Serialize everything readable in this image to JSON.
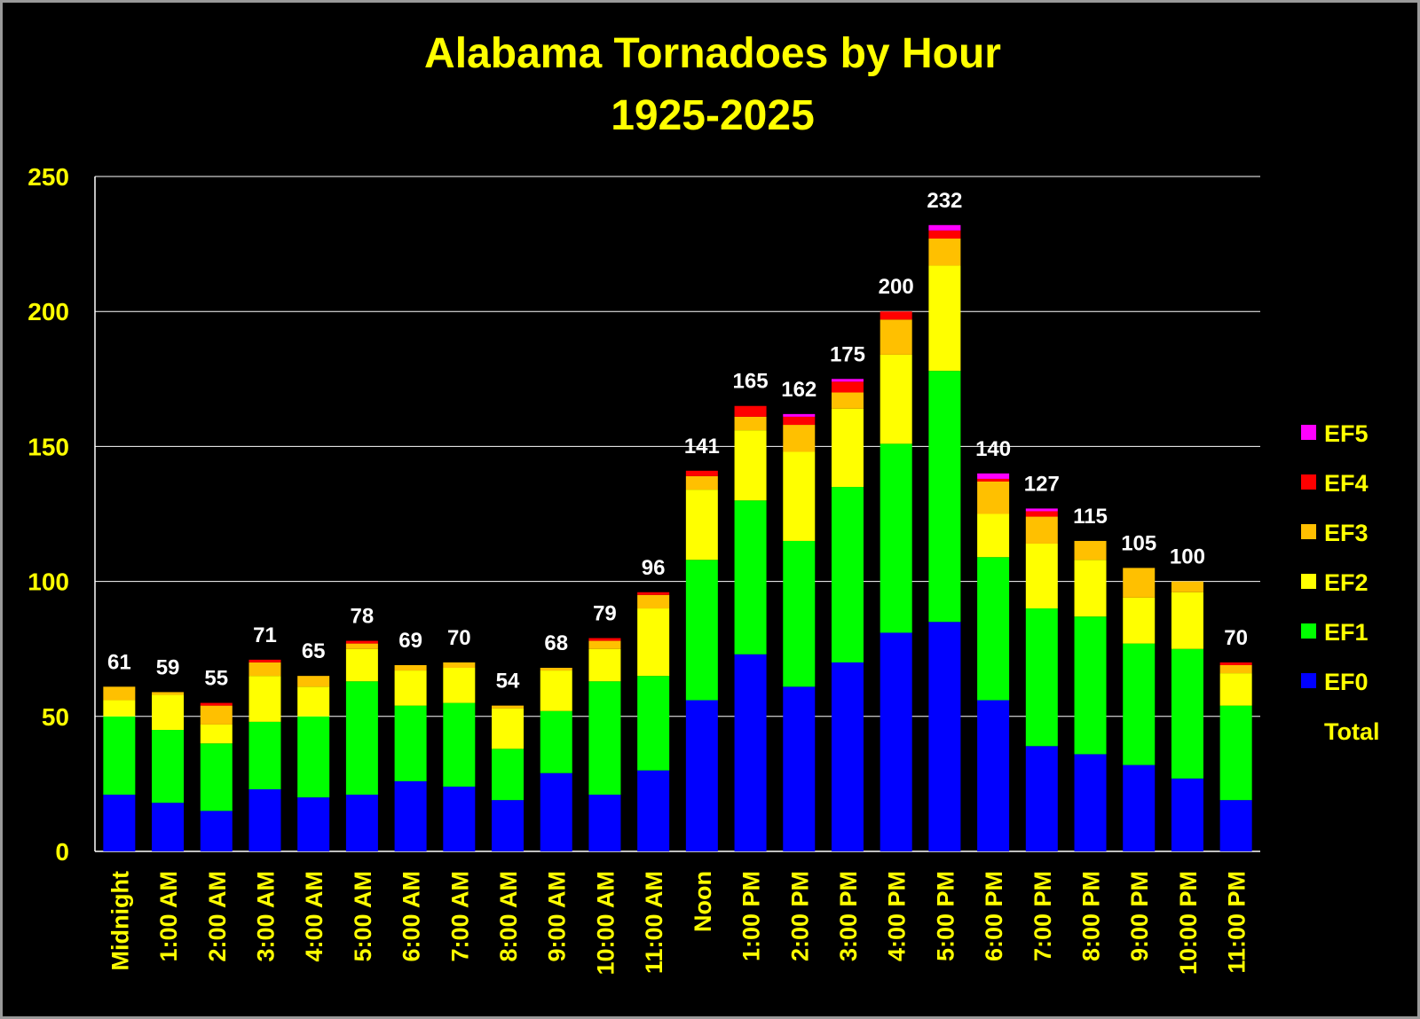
{
  "chart_data": {
    "type": "bar",
    "stacked": true,
    "title": "Alabama Tornadoes by Hour",
    "subtitle": "1925-2025",
    "categories": [
      "Midnight",
      "1:00 AM",
      "2:00 AM",
      "3:00 AM",
      "4:00 AM",
      "5:00 AM",
      "6:00 AM",
      "7:00 AM",
      "8:00 AM",
      "9:00 AM",
      "10:00 AM",
      "11:00 AM",
      "Noon",
      "1:00 PM",
      "2:00 PM",
      "3:00 PM",
      "4:00 PM",
      "5:00 PM",
      "6:00 PM",
      "7:00 PM",
      "8:00 PM",
      "9:00 PM",
      "10:00 PM",
      "11:00 PM"
    ],
    "series": [
      {
        "name": "EF0",
        "color": "#0000ff",
        "values": [
          21,
          18,
          15,
          23,
          20,
          21,
          26,
          24,
          19,
          29,
          21,
          30,
          56,
          73,
          61,
          70,
          81,
          85,
          56,
          39,
          36,
          32,
          27,
          19
        ]
      },
      {
        "name": "EF1",
        "color": "#00ff00",
        "values": [
          29,
          27,
          25,
          25,
          30,
          42,
          28,
          31,
          19,
          23,
          42,
          35,
          52,
          57,
          54,
          65,
          70,
          93,
          53,
          51,
          51,
          45,
          48,
          35
        ]
      },
      {
        "name": "EF2",
        "color": "#ffff00",
        "values": [
          6,
          13,
          7,
          17,
          11,
          12,
          13,
          13,
          15,
          15,
          12,
          25,
          26,
          26,
          33,
          29,
          33,
          39,
          16,
          24,
          21,
          17,
          21,
          12
        ]
      },
      {
        "name": "EF3",
        "color": "#ffc000",
        "values": [
          5,
          1,
          7,
          5,
          4,
          2,
          2,
          2,
          1,
          1,
          3,
          5,
          5,
          5,
          10,
          6,
          13,
          10,
          12,
          10,
          7,
          11,
          4,
          3
        ]
      },
      {
        "name": "EF4",
        "color": "#ff0000",
        "values": [
          0,
          0,
          1,
          1,
          0,
          1,
          0,
          0,
          0,
          0,
          1,
          1,
          2,
          4,
          3,
          4,
          3,
          3,
          1,
          2,
          0,
          0,
          0,
          1
        ]
      },
      {
        "name": "EF5",
        "color": "#ff00ff",
        "values": [
          0,
          0,
          0,
          0,
          0,
          0,
          0,
          0,
          0,
          0,
          0,
          0,
          0,
          0,
          1,
          1,
          0,
          2,
          2,
          1,
          0,
          0,
          0,
          0
        ]
      }
    ],
    "totals": [
      61,
      59,
      55,
      71,
      65,
      78,
      69,
      70,
      54,
      68,
      79,
      96,
      141,
      165,
      162,
      175,
      200,
      232,
      140,
      127,
      115,
      105,
      100,
      70
    ],
    "total_label": "Total",
    "ylim": [
      0,
      250
    ],
    "yticks": [
      0,
      50,
      100,
      150,
      200,
      250
    ],
    "grid": true,
    "legend_position": "right",
    "legend_order": [
      "EF5",
      "EF4",
      "EF3",
      "EF2",
      "EF1",
      "EF0"
    ],
    "colors": {
      "background": "#000000",
      "axis_text": "#ffff00",
      "total_labels": "#ffffff",
      "gridlines": "#ffffff"
    }
  }
}
